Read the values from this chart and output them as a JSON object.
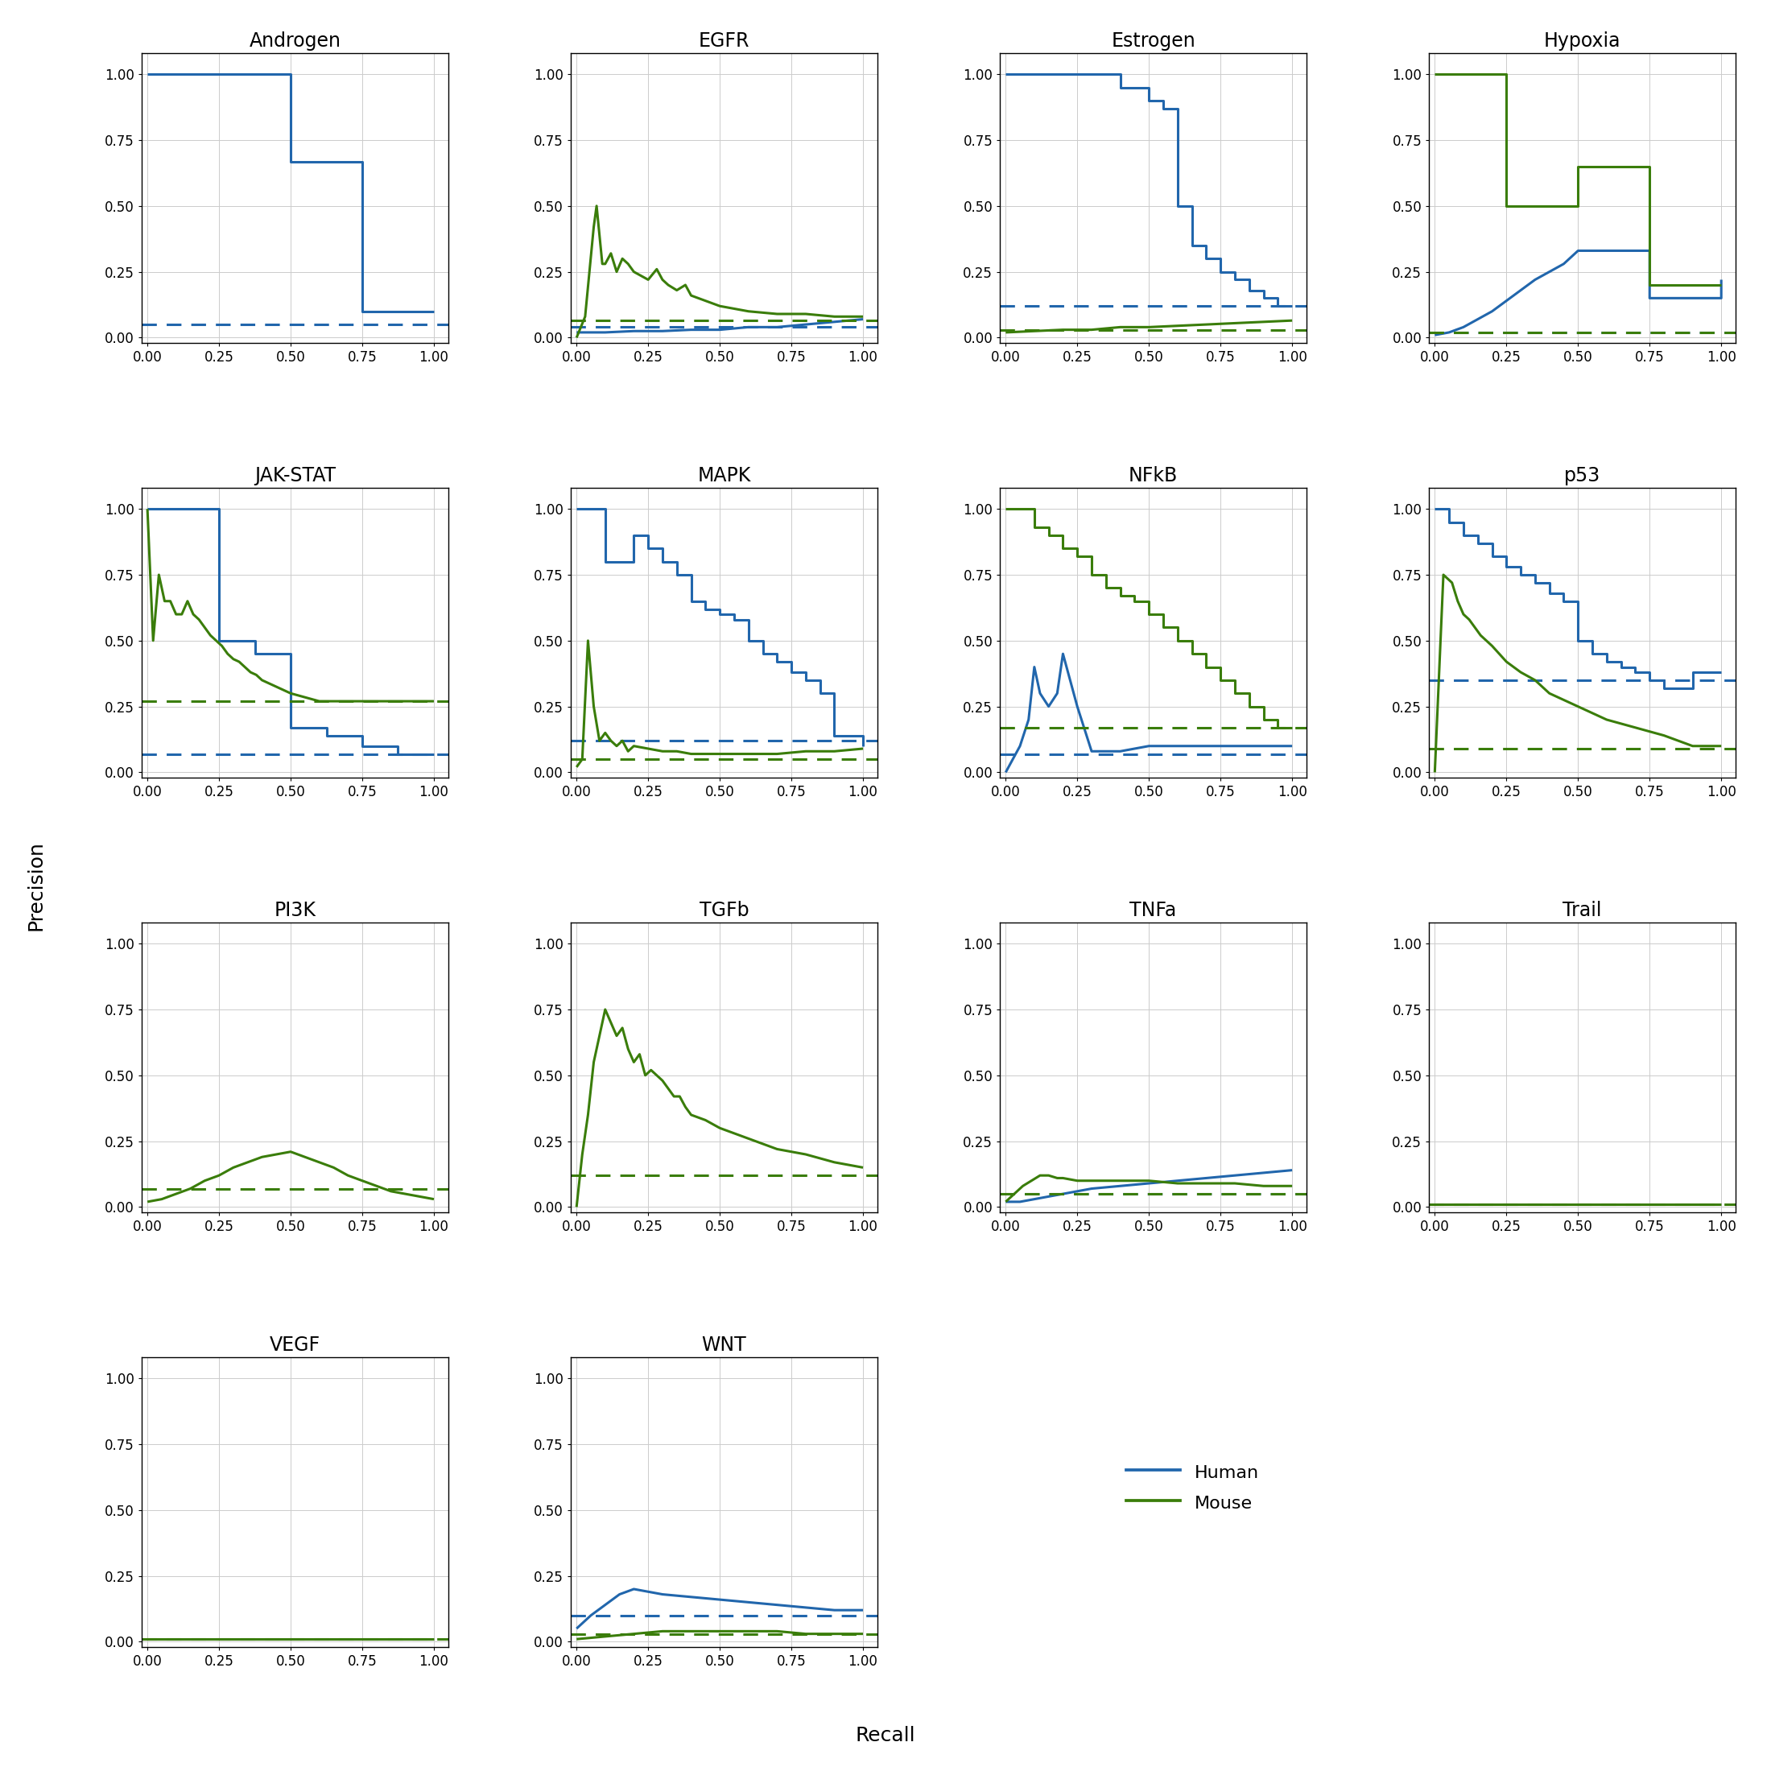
{
  "pathways": [
    "Androgen",
    "EGFR",
    "Estrogen",
    "Hypoxia",
    "JAK-STAT",
    "MAPK",
    "NFkB",
    "p53",
    "PI3K",
    "TGFb",
    "TNFa",
    "Trail",
    "VEGF",
    "WNT"
  ],
  "human_color": "#2166ac",
  "mouse_color": "#3a7d0a",
  "background_color": "#ffffff",
  "grid_color": "#cccccc",
  "curves": {
    "Androgen": {
      "human": {
        "recall": [
          0.0,
          0.0,
          0.5,
          0.5,
          0.75,
          0.75,
          1.0,
          1.0
        ],
        "precision": [
          1.0,
          1.0,
          1.0,
          0.667,
          0.667,
          0.1,
          0.1,
          0.1
        ],
        "baseline": 0.05
      },
      "mouse": null
    },
    "EGFR": {
      "human": {
        "recall": [
          0.0,
          0.1,
          0.2,
          0.3,
          0.4,
          0.5,
          0.6,
          0.7,
          0.8,
          0.9,
          1.0
        ],
        "precision": [
          0.02,
          0.02,
          0.025,
          0.025,
          0.03,
          0.03,
          0.04,
          0.04,
          0.05,
          0.06,
          0.07
        ],
        "baseline": 0.04
      },
      "mouse": {
        "recall": [
          0.0,
          0.03,
          0.06,
          0.07,
          0.09,
          0.1,
          0.12,
          0.14,
          0.16,
          0.18,
          0.2,
          0.25,
          0.28,
          0.3,
          0.32,
          0.35,
          0.38,
          0.4,
          0.5,
          0.6,
          0.7,
          0.8,
          0.9,
          1.0
        ],
        "precision": [
          0.0,
          0.08,
          0.42,
          0.5,
          0.28,
          0.28,
          0.32,
          0.25,
          0.3,
          0.28,
          0.25,
          0.22,
          0.26,
          0.22,
          0.2,
          0.18,
          0.2,
          0.16,
          0.12,
          0.1,
          0.09,
          0.09,
          0.08,
          0.08
        ],
        "baseline": 0.065
      }
    },
    "Estrogen": {
      "human": {
        "recall": [
          0.0,
          0.0,
          0.4,
          0.4,
          0.5,
          0.5,
          0.55,
          0.55,
          0.6,
          0.6,
          0.65,
          0.65,
          0.7,
          0.7,
          0.75,
          0.75,
          0.8,
          0.8,
          0.85,
          0.85,
          0.9,
          0.9,
          0.95,
          0.95,
          1.0
        ],
        "precision": [
          1.0,
          1.0,
          1.0,
          0.95,
          0.95,
          0.9,
          0.9,
          0.87,
          0.87,
          0.5,
          0.5,
          0.35,
          0.35,
          0.3,
          0.3,
          0.25,
          0.25,
          0.22,
          0.22,
          0.18,
          0.18,
          0.15,
          0.15,
          0.12,
          0.12
        ],
        "baseline": 0.12
      },
      "mouse": {
        "recall": [
          0.0,
          0.1,
          0.2,
          0.3,
          0.4,
          0.5,
          0.6,
          0.7,
          0.8,
          0.9,
          1.0
        ],
        "precision": [
          0.02,
          0.025,
          0.03,
          0.03,
          0.04,
          0.04,
          0.045,
          0.05,
          0.055,
          0.06,
          0.065
        ],
        "baseline": 0.03
      }
    },
    "Hypoxia": {
      "human": {
        "recall": [
          0.0,
          0.05,
          0.1,
          0.15,
          0.2,
          0.25,
          0.3,
          0.35,
          0.4,
          0.45,
          0.5,
          0.75,
          0.75,
          1.0,
          1.0
        ],
        "precision": [
          0.01,
          0.02,
          0.04,
          0.07,
          0.1,
          0.14,
          0.18,
          0.22,
          0.25,
          0.28,
          0.33,
          0.33,
          0.15,
          0.15,
          0.22
        ],
        "baseline": 0.02
      },
      "mouse": {
        "recall": [
          0.0,
          0.0,
          0.25,
          0.25,
          0.5,
          0.5,
          0.5,
          0.75,
          0.75,
          1.0
        ],
        "precision": [
          1.0,
          1.0,
          1.0,
          0.5,
          0.5,
          0.65,
          0.65,
          0.65,
          0.2,
          0.2
        ],
        "baseline": 0.02
      }
    },
    "JAK-STAT": {
      "human": {
        "recall": [
          0.0,
          0.0,
          0.25,
          0.25,
          0.375,
          0.375,
          0.5,
          0.5,
          0.625,
          0.625,
          0.75,
          0.75,
          0.875,
          0.875,
          1.0
        ],
        "precision": [
          1.0,
          1.0,
          1.0,
          0.5,
          0.5,
          0.45,
          0.45,
          0.17,
          0.17,
          0.14,
          0.14,
          0.1,
          0.1,
          0.07,
          0.07
        ],
        "baseline": 0.07
      },
      "mouse": {
        "recall": [
          0.0,
          0.02,
          0.04,
          0.06,
          0.08,
          0.1,
          0.12,
          0.14,
          0.16,
          0.18,
          0.2,
          0.22,
          0.24,
          0.26,
          0.28,
          0.3,
          0.32,
          0.34,
          0.36,
          0.38,
          0.4,
          0.5,
          0.6,
          0.7,
          0.8,
          0.9,
          1.0
        ],
        "precision": [
          1.0,
          0.5,
          0.75,
          0.65,
          0.65,
          0.6,
          0.6,
          0.65,
          0.6,
          0.58,
          0.55,
          0.52,
          0.5,
          0.48,
          0.45,
          0.43,
          0.42,
          0.4,
          0.38,
          0.37,
          0.35,
          0.3,
          0.27,
          0.27,
          0.27,
          0.27,
          0.27
        ],
        "baseline": 0.27
      }
    },
    "MAPK": {
      "human": {
        "recall": [
          0.0,
          0.0,
          0.1,
          0.1,
          0.2,
          0.2,
          0.25,
          0.25,
          0.3,
          0.3,
          0.35,
          0.35,
          0.4,
          0.4,
          0.45,
          0.45,
          0.5,
          0.5,
          0.55,
          0.55,
          0.6,
          0.6,
          0.65,
          0.65,
          0.7,
          0.7,
          0.75,
          0.75,
          0.8,
          0.8,
          0.85,
          0.85,
          0.9,
          0.9,
          1.0,
          1.0
        ],
        "precision": [
          1.0,
          1.0,
          1.0,
          0.8,
          0.8,
          0.9,
          0.9,
          0.85,
          0.85,
          0.8,
          0.8,
          0.75,
          0.75,
          0.65,
          0.65,
          0.62,
          0.62,
          0.6,
          0.6,
          0.58,
          0.58,
          0.5,
          0.5,
          0.45,
          0.45,
          0.42,
          0.42,
          0.38,
          0.38,
          0.35,
          0.35,
          0.3,
          0.3,
          0.14,
          0.14,
          0.1
        ],
        "baseline": 0.12
      },
      "mouse": {
        "recall": [
          0.0,
          0.02,
          0.04,
          0.06,
          0.08,
          0.1,
          0.12,
          0.14,
          0.16,
          0.18,
          0.2,
          0.25,
          0.3,
          0.35,
          0.4,
          0.5,
          0.6,
          0.7,
          0.8,
          0.9,
          1.0
        ],
        "precision": [
          0.02,
          0.05,
          0.5,
          0.25,
          0.12,
          0.15,
          0.12,
          0.1,
          0.12,
          0.08,
          0.1,
          0.09,
          0.08,
          0.08,
          0.07,
          0.07,
          0.07,
          0.07,
          0.08,
          0.08,
          0.09
        ],
        "baseline": 0.05
      }
    },
    "NFkB": {
      "human": {
        "recall": [
          0.0,
          0.05,
          0.08,
          0.1,
          0.12,
          0.15,
          0.18,
          0.2,
          0.25,
          0.3,
          0.35,
          0.4,
          0.5,
          0.6,
          0.7,
          0.8,
          0.9,
          1.0
        ],
        "precision": [
          0.0,
          0.1,
          0.2,
          0.4,
          0.3,
          0.25,
          0.3,
          0.45,
          0.25,
          0.08,
          0.08,
          0.08,
          0.1,
          0.1,
          0.1,
          0.1,
          0.1,
          0.1
        ],
        "baseline": 0.07
      },
      "mouse": {
        "recall": [
          0.0,
          0.0,
          0.1,
          0.1,
          0.15,
          0.15,
          0.2,
          0.2,
          0.25,
          0.25,
          0.3,
          0.3,
          0.35,
          0.35,
          0.4,
          0.4,
          0.45,
          0.45,
          0.5,
          0.5,
          0.55,
          0.55,
          0.6,
          0.6,
          0.65,
          0.65,
          0.7,
          0.7,
          0.75,
          0.75,
          0.8,
          0.8,
          0.85,
          0.85,
          0.9,
          0.9,
          0.95,
          0.95,
          1.0
        ],
        "precision": [
          1.0,
          1.0,
          1.0,
          0.93,
          0.93,
          0.9,
          0.9,
          0.85,
          0.85,
          0.82,
          0.82,
          0.75,
          0.75,
          0.7,
          0.7,
          0.67,
          0.67,
          0.65,
          0.65,
          0.6,
          0.6,
          0.55,
          0.55,
          0.5,
          0.5,
          0.45,
          0.45,
          0.4,
          0.4,
          0.35,
          0.35,
          0.3,
          0.3,
          0.25,
          0.25,
          0.2,
          0.2,
          0.17,
          0.17
        ],
        "baseline": 0.17
      }
    },
    "p53": {
      "human": {
        "recall": [
          0.0,
          0.0,
          0.05,
          0.05,
          0.1,
          0.1,
          0.15,
          0.15,
          0.2,
          0.2,
          0.25,
          0.25,
          0.3,
          0.3,
          0.35,
          0.35,
          0.4,
          0.4,
          0.45,
          0.45,
          0.5,
          0.5,
          0.55,
          0.55,
          0.6,
          0.6,
          0.65,
          0.65,
          0.7,
          0.7,
          0.75,
          0.75,
          0.8,
          0.8,
          0.9,
          0.9,
          1.0
        ],
        "precision": [
          1.0,
          1.0,
          1.0,
          0.95,
          0.95,
          0.9,
          0.9,
          0.87,
          0.87,
          0.82,
          0.82,
          0.78,
          0.78,
          0.75,
          0.75,
          0.72,
          0.72,
          0.68,
          0.68,
          0.65,
          0.65,
          0.5,
          0.5,
          0.45,
          0.45,
          0.42,
          0.42,
          0.4,
          0.4,
          0.38,
          0.38,
          0.35,
          0.35,
          0.32,
          0.32,
          0.38,
          0.38
        ],
        "baseline": 0.35
      },
      "mouse": {
        "recall": [
          0.0,
          0.03,
          0.06,
          0.08,
          0.1,
          0.12,
          0.14,
          0.16,
          0.18,
          0.2,
          0.25,
          0.3,
          0.35,
          0.4,
          0.5,
          0.6,
          0.7,
          0.8,
          0.9,
          1.0
        ],
        "precision": [
          0.0,
          0.75,
          0.72,
          0.65,
          0.6,
          0.58,
          0.55,
          0.52,
          0.5,
          0.48,
          0.42,
          0.38,
          0.35,
          0.3,
          0.25,
          0.2,
          0.17,
          0.14,
          0.1,
          0.1
        ],
        "baseline": 0.09
      }
    },
    "PI3K": {
      "human": null,
      "mouse": {
        "recall": [
          0.0,
          0.05,
          0.1,
          0.15,
          0.2,
          0.25,
          0.3,
          0.35,
          0.4,
          0.45,
          0.5,
          0.55,
          0.6,
          0.65,
          0.7,
          0.75,
          0.8,
          0.85,
          0.9,
          0.95,
          1.0
        ],
        "precision": [
          0.02,
          0.03,
          0.05,
          0.07,
          0.1,
          0.12,
          0.15,
          0.17,
          0.19,
          0.2,
          0.21,
          0.19,
          0.17,
          0.15,
          0.12,
          0.1,
          0.08,
          0.06,
          0.05,
          0.04,
          0.03
        ],
        "baseline": 0.07
      }
    },
    "TGFb": {
      "human": null,
      "mouse": {
        "recall": [
          0.0,
          0.02,
          0.04,
          0.06,
          0.08,
          0.1,
          0.12,
          0.14,
          0.16,
          0.18,
          0.2,
          0.22,
          0.24,
          0.26,
          0.28,
          0.3,
          0.32,
          0.34,
          0.36,
          0.38,
          0.4,
          0.45,
          0.5,
          0.6,
          0.7,
          0.8,
          0.9,
          1.0
        ],
        "precision": [
          0.0,
          0.2,
          0.35,
          0.55,
          0.65,
          0.75,
          0.7,
          0.65,
          0.68,
          0.6,
          0.55,
          0.58,
          0.5,
          0.52,
          0.5,
          0.48,
          0.45,
          0.42,
          0.42,
          0.38,
          0.35,
          0.33,
          0.3,
          0.26,
          0.22,
          0.2,
          0.17,
          0.15
        ],
        "baseline": 0.12
      }
    },
    "TNFa": {
      "human": {
        "recall": [
          0.0,
          0.05,
          0.1,
          0.15,
          0.2,
          0.25,
          0.3,
          0.4,
          0.5,
          0.6,
          0.7,
          0.8,
          0.9,
          1.0
        ],
        "precision": [
          0.02,
          0.02,
          0.03,
          0.04,
          0.05,
          0.06,
          0.07,
          0.08,
          0.09,
          0.1,
          0.11,
          0.12,
          0.13,
          0.14
        ],
        "baseline": 0.05
      },
      "mouse": {
        "recall": [
          0.0,
          0.03,
          0.06,
          0.09,
          0.12,
          0.15,
          0.18,
          0.2,
          0.25,
          0.3,
          0.4,
          0.5,
          0.6,
          0.7,
          0.8,
          0.9,
          1.0
        ],
        "precision": [
          0.02,
          0.05,
          0.08,
          0.1,
          0.12,
          0.12,
          0.11,
          0.11,
          0.1,
          0.1,
          0.1,
          0.1,
          0.09,
          0.09,
          0.09,
          0.08,
          0.08
        ],
        "baseline": 0.05
      }
    },
    "Trail": {
      "human": null,
      "mouse": {
        "recall": [
          0.0,
          0.1,
          0.2,
          0.3,
          0.4,
          0.5,
          0.6,
          0.7,
          0.8,
          0.9,
          1.0
        ],
        "precision": [
          0.01,
          0.01,
          0.01,
          0.01,
          0.01,
          0.01,
          0.01,
          0.01,
          0.01,
          0.01,
          0.01
        ],
        "baseline": 0.01
      }
    },
    "VEGF": {
      "human": null,
      "mouse": {
        "recall": [
          0.0,
          0.1,
          0.2,
          0.3,
          0.4,
          0.5,
          0.6,
          0.7,
          0.8,
          0.9,
          1.0
        ],
        "precision": [
          0.01,
          0.01,
          0.01,
          0.01,
          0.01,
          0.01,
          0.01,
          0.01,
          0.01,
          0.01,
          0.01
        ],
        "baseline": 0.01
      }
    },
    "WNT": {
      "human": {
        "recall": [
          0.0,
          0.05,
          0.1,
          0.15,
          0.2,
          0.25,
          0.3,
          0.4,
          0.5,
          0.6,
          0.7,
          0.8,
          0.9,
          1.0
        ],
        "precision": [
          0.05,
          0.1,
          0.14,
          0.18,
          0.2,
          0.19,
          0.18,
          0.17,
          0.16,
          0.15,
          0.14,
          0.13,
          0.12,
          0.12
        ],
        "baseline": 0.1
      },
      "mouse": {
        "recall": [
          0.0,
          0.1,
          0.2,
          0.3,
          0.4,
          0.5,
          0.6,
          0.7,
          0.8,
          0.9,
          1.0
        ],
        "precision": [
          0.01,
          0.02,
          0.03,
          0.04,
          0.04,
          0.04,
          0.04,
          0.04,
          0.03,
          0.03,
          0.03
        ],
        "baseline": 0.03
      }
    }
  },
  "nrows": 4,
  "ncols": 4,
  "figsize": [
    22,
    22
  ],
  "title_fontsize": 17,
  "tick_fontsize": 12,
  "label_fontsize": 18,
  "legend_fontsize": 16,
  "linewidth": 2.2
}
